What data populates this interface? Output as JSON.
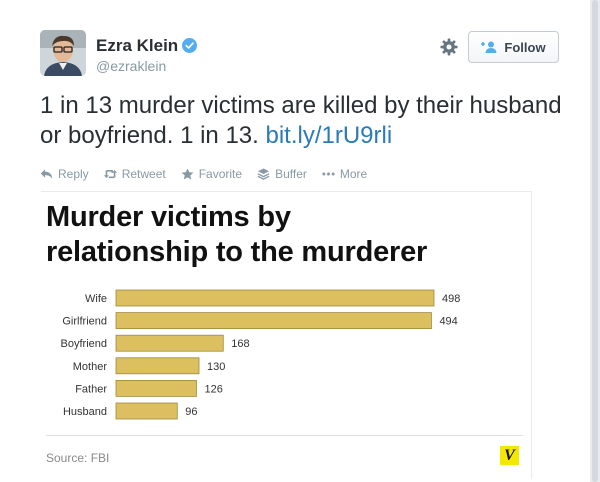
{
  "author": {
    "name": "Ezra Klein",
    "handle": "@ezraklein",
    "verified_icon": "verified-badge-icon"
  },
  "header": {
    "follow_label": "Follow",
    "gear_icon": "gear-icon"
  },
  "tweet": {
    "text": "1 in 13 murder victims are killed by their husband or boyfriend. 1 in 13. ",
    "link": "bit.ly/1rU9rli"
  },
  "actions": [
    {
      "label": "Reply",
      "icon": "reply-icon"
    },
    {
      "label": "Retweet",
      "icon": "retweet-icon"
    },
    {
      "label": "Favorite",
      "icon": "star-icon"
    },
    {
      "label": "Buffer",
      "icon": "buffer-icon"
    },
    {
      "label": "More",
      "icon": "more-icon"
    }
  ],
  "card": {
    "source": "Source: FBI",
    "logo_letter": "V"
  },
  "chart_data": {
    "type": "bar",
    "orientation": "horizontal",
    "title_lines": [
      "Murder victims by",
      "relationship to the murderer"
    ],
    "categories": [
      "Wife",
      "Girlfriend",
      "Boyfriend",
      "Mother",
      "Father",
      "Husband"
    ],
    "values": [
      498,
      494,
      168,
      130,
      126,
      96
    ],
    "xlim": [
      0,
      498
    ],
    "bar_color": "#dcbf5f",
    "bar_border": "#9e8a3e",
    "data_labels": true,
    "grid": false,
    "legend": "none"
  },
  "colors": {
    "link": "#2b7bb9",
    "muted": "#8899a6",
    "verified": "#55acee",
    "vox_yellow": "#f4e700"
  }
}
